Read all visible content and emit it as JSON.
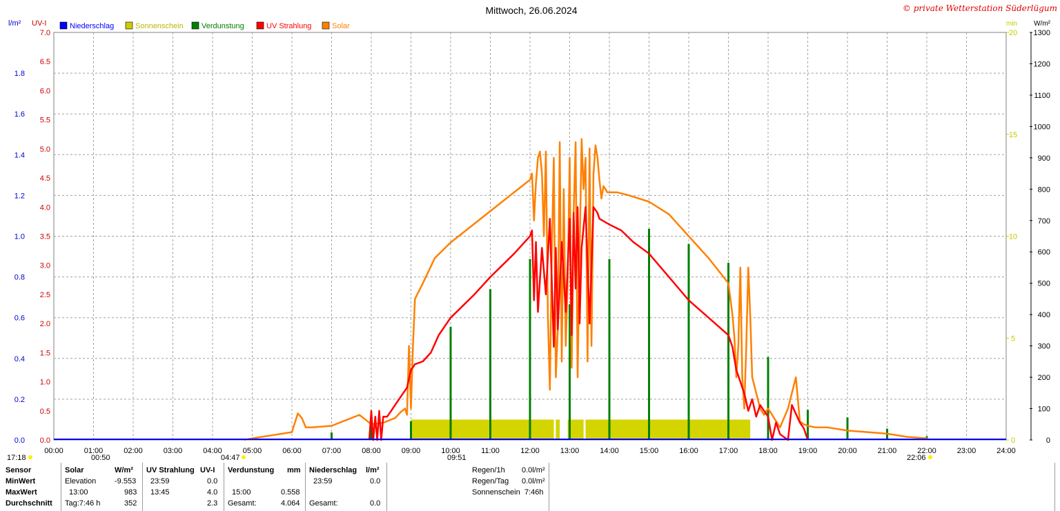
{
  "chart_data": {
    "type": "line",
    "title": "Mittwoch, 26.06.2024",
    "watermark": "© private Wetterstation Süderlügum",
    "x_ticks": [
      "00:00",
      "01:00",
      "02:00",
      "03:00",
      "04:00",
      "05:00",
      "06:00",
      "07:00",
      "08:00",
      "09:00",
      "10:00",
      "11:00",
      "12:00",
      "13:00",
      "14:00",
      "15:00",
      "16:00",
      "17:00",
      "18:00",
      "19:00",
      "20:00",
      "21:00",
      "22:00",
      "23:00",
      "24:00"
    ],
    "axes": {
      "precip": {
        "unit": "l/m²",
        "ylim": [
          0,
          2.0
        ],
        "ticks": [
          "0.0",
          "0.2",
          "0.4",
          "0.6",
          "0.8",
          "1.0",
          "1.2",
          "1.4",
          "1.6",
          "1.8"
        ],
        "color": "#0000cc"
      },
      "uv": {
        "unit": "UV-I",
        "ylim": [
          0,
          7.0
        ],
        "ticks": [
          "0.0",
          "0.5",
          "1.0",
          "1.5",
          "2.0",
          "2.5",
          "3.0",
          "3.5",
          "4.0",
          "4.5",
          "5.0",
          "5.5",
          "6.0",
          "6.5",
          "7.0"
        ],
        "color": "#cc0000"
      },
      "sun": {
        "unit": "min",
        "ylim": [
          0,
          20
        ],
        "ticks": [
          "0",
          "5",
          "10",
          "15",
          "20"
        ],
        "color": "#c8c800"
      },
      "solar": {
        "unit": "W/m²",
        "ylim": [
          0,
          1300
        ],
        "ticks": [
          "0",
          "100",
          "200",
          "300",
          "400",
          "500",
          "600",
          "700",
          "800",
          "900",
          "1000",
          "1100",
          "1200",
          "1300"
        ],
        "color": "#000000"
      }
    },
    "legend": [
      {
        "name": "Niederschlag",
        "color": "#0000ff"
      },
      {
        "name": "Sonnenschein",
        "color": "#cccc00"
      },
      {
        "name": "Verdunstung",
        "color": "#008000"
      },
      {
        "name": "UV Strahlung",
        "color": "#ff0000"
      },
      {
        "name": "Solar",
        "color": "#ff8000"
      }
    ],
    "series": [
      {
        "name": "Solar",
        "unit": "W/m²",
        "color": "#ff8000",
        "x": [
          4.8,
          5.0,
          5.5,
          6.0,
          6.15,
          6.25,
          6.35,
          6.5,
          7.0,
          7.3,
          7.5,
          7.7,
          7.9,
          8.0,
          8.3,
          8.6,
          8.75,
          8.85,
          8.9,
          8.95,
          9.0,
          9.05,
          9.1,
          9.3,
          9.6,
          10.0,
          10.5,
          11.0,
          11.5,
          12.0,
          12.05,
          12.1,
          12.15,
          12.2,
          12.25,
          12.3,
          12.35,
          12.4,
          12.45,
          12.5,
          12.55,
          12.6,
          12.65,
          12.7,
          12.75,
          12.8,
          12.85,
          12.9,
          12.95,
          13.0,
          13.05,
          13.1,
          13.15,
          13.2,
          13.25,
          13.3,
          13.35,
          13.4,
          13.45,
          13.5,
          13.55,
          13.6,
          13.65,
          13.7,
          13.75,
          13.8,
          13.85,
          13.9,
          13.95,
          14.0,
          14.2,
          14.5,
          15.0,
          15.5,
          16.0,
          16.5,
          17.0,
          17.1,
          17.15,
          17.2,
          17.25,
          17.3,
          17.35,
          17.4,
          17.45,
          17.5,
          17.55,
          17.6,
          17.7,
          17.8,
          17.9,
          18.0,
          18.1,
          18.2,
          18.3,
          18.5,
          18.7,
          18.8,
          18.9,
          19.0,
          19.2,
          19.5,
          20.0,
          20.5,
          21.0,
          21.5,
          22.0,
          22.05
        ],
        "values": [
          0,
          5,
          15,
          25,
          85,
          70,
          40,
          40,
          45,
          60,
          70,
          80,
          60,
          50,
          55,
          70,
          90,
          100,
          80,
          300,
          100,
          300,
          450,
          500,
          580,
          630,
          680,
          730,
          780,
          830,
          850,
          700,
          820,
          900,
          920,
          850,
          650,
          920,
          400,
          160,
          600,
          900,
          200,
          350,
          950,
          250,
          800,
          300,
          500,
          900,
          230,
          720,
          950,
          200,
          600,
          960,
          800,
          900,
          250,
          930,
          300,
          850,
          940,
          900,
          830,
          770,
          810,
          800,
          790,
          790,
          790,
          780,
          760,
          720,
          650,
          580,
          500,
          400,
          330,
          200,
          300,
          550,
          200,
          100,
          300,
          550,
          400,
          200,
          150,
          100,
          80,
          100,
          80,
          60,
          40,
          100,
          200,
          60,
          50,
          45,
          40,
          40,
          30,
          25,
          20,
          10,
          5,
          0
        ]
      },
      {
        "name": "UV Strahlung",
        "unit": "UV-I",
        "color": "#ff0000",
        "x": [
          7.95,
          8.0,
          8.05,
          8.1,
          8.15,
          8.2,
          8.25,
          8.3,
          8.4,
          8.5,
          8.6,
          8.75,
          8.9,
          9.0,
          9.1,
          9.3,
          9.5,
          9.7,
          9.9,
          10.0,
          10.3,
          10.6,
          11.0,
          11.3,
          11.6,
          12.0,
          12.05,
          12.1,
          12.15,
          12.2,
          12.3,
          12.4,
          12.5,
          12.6,
          12.65,
          12.7,
          12.8,
          12.9,
          13.0,
          13.05,
          13.1,
          13.15,
          13.2,
          13.25,
          13.3,
          13.4,
          13.5,
          13.6,
          13.7,
          13.75,
          14.0,
          14.3,
          14.6,
          15.0,
          15.5,
          16.0,
          16.5,
          17.0,
          17.1,
          17.2,
          17.3,
          17.4,
          17.5,
          17.6,
          17.7,
          17.8,
          17.9,
          18.0,
          18.1,
          18.2,
          18.3,
          18.5,
          18.6,
          18.8,
          18.9,
          19.0
        ],
        "values": [
          0,
          0.5,
          0,
          0.4,
          0,
          0.5,
          0,
          0.4,
          0.4,
          0.5,
          0.6,
          0.75,
          0.9,
          1.2,
          1.3,
          1.35,
          1.5,
          1.8,
          2.0,
          2.1,
          2.3,
          2.5,
          2.8,
          3.0,
          3.2,
          3.5,
          3.6,
          2.4,
          3.4,
          2.2,
          3.3,
          2.5,
          3.8,
          1.6,
          3.3,
          1.9,
          3.4,
          2.2,
          3.8,
          1.8,
          3.9,
          2.6,
          4.0,
          2.0,
          3.3,
          4.0,
          2.0,
          4.0,
          3.9,
          3.8,
          3.7,
          3.6,
          3.4,
          3.2,
          2.8,
          2.4,
          2.1,
          1.8,
          1.6,
          1.2,
          1.0,
          0.8,
          0.5,
          0.7,
          0.4,
          0.6,
          0.5,
          0.4,
          0,
          0.3,
          0.1,
          0,
          0.6,
          0.3,
          0.2,
          0
        ]
      },
      {
        "name": "Sonnenschein",
        "unit": "min",
        "color": "#cccc00",
        "bars": [
          [
            9.0,
            12.6
          ],
          [
            12.65,
            12.75
          ],
          [
            12.95,
            13.35
          ],
          [
            13.4,
            17.55
          ]
        ],
        "value": 1
      }
    ],
    "verdunstung_bars": {
      "x": [
        7.0,
        8.0,
        9.0,
        10.0,
        11.0,
        12.0,
        13.0,
        14.0,
        15.0,
        16.0,
        17.0,
        18.0,
        19.0,
        20.0,
        21.0,
        22.0
      ],
      "values": [
        0.02,
        0.04,
        0.05,
        0.3,
        0.4,
        0.48,
        0.36,
        0.48,
        0.56,
        0.52,
        0.47,
        0.22,
        0.08,
        0.06,
        0.03,
        0.01
      ]
    },
    "sun_markers": {
      "sunrise": "04:47",
      "sunset": "22:06",
      "daylength": "17:18",
      "moon_left": "00:50",
      "moon_right": "09:51"
    }
  },
  "table": {
    "headers": {
      "sensor": "Sensor",
      "solar": "Solar",
      "solar_unit": "W/m²",
      "uv": "UV Strahlung",
      "uv_unit": "UV-I",
      "verd": "Verdunstung",
      "verd_unit": "mm",
      "nieder": "Niederschlag",
      "nieder_unit": "l/m²"
    },
    "rows": [
      {
        "label": "MinWert",
        "solar_t": "Elevation",
        "solar_v": "-9.553",
        "uv_t": "23:59",
        "uv_v": "0.0",
        "verd_t": "",
        "verd_v": "",
        "nieder_t": "23:59",
        "nieder_v": "0.0"
      },
      {
        "label": "MaxWert",
        "solar_t": "13:00",
        "solar_v": "983",
        "uv_t": "13:45",
        "uv_v": "4.0",
        "verd_t": "15:00",
        "verd_v": "0.558",
        "nieder_t": "",
        "nieder_v": ""
      },
      {
        "label": "Durchschnitt",
        "solar_t": "Tag:7:46 h",
        "solar_v": "352",
        "uv_t": "",
        "uv_v": "2.3",
        "verd_t": "Gesamt:",
        "verd_v": "4.064",
        "nieder_t": "Gesamt:",
        "nieder_v": "0.0"
      }
    ],
    "extra": [
      {
        "label": "Regen/1h",
        "value": "0.0l/m²"
      },
      {
        "label": "Regen/Tag",
        "value": "0.0l/m²"
      },
      {
        "label": "Sonnenschein",
        "value": "7:46h"
      }
    ]
  }
}
